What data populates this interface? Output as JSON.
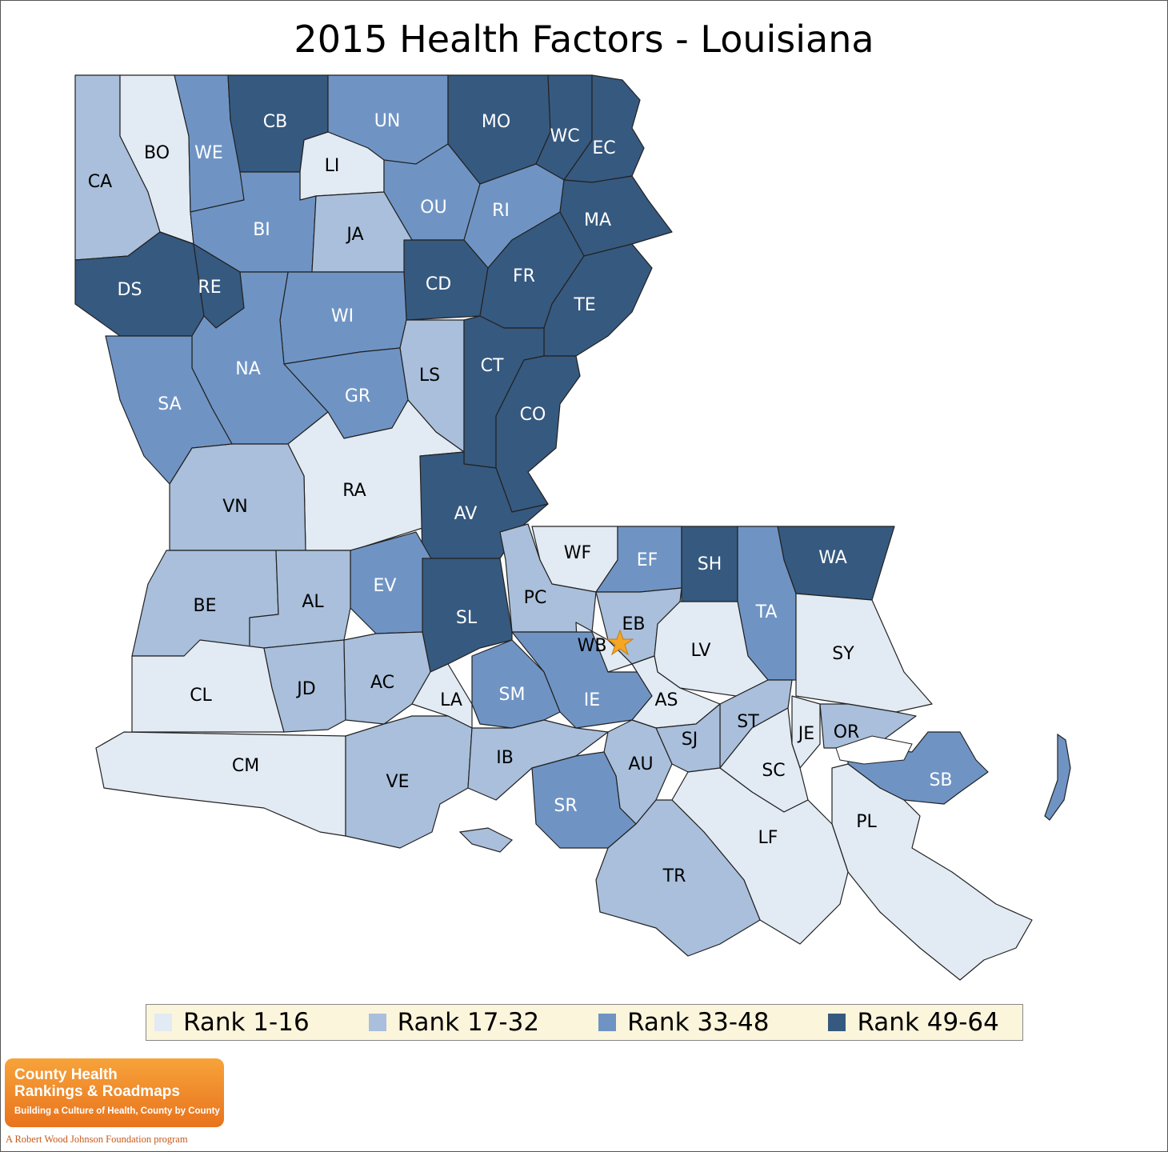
{
  "title": "2015 Health Factors - Louisiana",
  "legend": [
    {
      "label": "Rank 1-16",
      "color": "#e2eaf3"
    },
    {
      "label": "Rank 17-32",
      "color": "#a9bfdb"
    },
    {
      "label": "Rank 33-48",
      "color": "#6f94c4"
    },
    {
      "label": "Rank 49-64",
      "color": "#36597f"
    }
  ],
  "parishes": [
    {
      "code": "CA",
      "tier": 1
    },
    {
      "code": "BO",
      "tier": 0
    },
    {
      "code": "WE",
      "tier": 2
    },
    {
      "code": "CB",
      "tier": 3
    },
    {
      "code": "UN",
      "tier": 2
    },
    {
      "code": "MO",
      "tier": 3
    },
    {
      "code": "WC",
      "tier": 3
    },
    {
      "code": "EC",
      "tier": 3
    },
    {
      "code": "LI",
      "tier": 0
    },
    {
      "code": "OU",
      "tier": 2
    },
    {
      "code": "RI",
      "tier": 2
    },
    {
      "code": "MA",
      "tier": 3
    },
    {
      "code": "BI",
      "tier": 2
    },
    {
      "code": "JA",
      "tier": 1
    },
    {
      "code": "DS",
      "tier": 3
    },
    {
      "code": "RE",
      "tier": 3
    },
    {
      "code": "CD",
      "tier": 3
    },
    {
      "code": "FR",
      "tier": 3
    },
    {
      "code": "TE",
      "tier": 3
    },
    {
      "code": "WI",
      "tier": 2
    },
    {
      "code": "NA",
      "tier": 2
    },
    {
      "code": "LS",
      "tier": 1
    },
    {
      "code": "CT",
      "tier": 3
    },
    {
      "code": "GR",
      "tier": 2
    },
    {
      "code": "SA",
      "tier": 2
    },
    {
      "code": "CO",
      "tier": 3
    },
    {
      "code": "RA",
      "tier": 0
    },
    {
      "code": "VN",
      "tier": 1
    },
    {
      "code": "AV",
      "tier": 3
    },
    {
      "code": "WF",
      "tier": 0
    },
    {
      "code": "EF",
      "tier": 2
    },
    {
      "code": "SH",
      "tier": 3
    },
    {
      "code": "WA",
      "tier": 3
    },
    {
      "code": "EV",
      "tier": 2
    },
    {
      "code": "PC",
      "tier": 1
    },
    {
      "code": "BE",
      "tier": 1
    },
    {
      "code": "AL",
      "tier": 1
    },
    {
      "code": "SL",
      "tier": 3
    },
    {
      "code": "EB",
      "tier": 1
    },
    {
      "code": "TA",
      "tier": 2
    },
    {
      "code": "WB",
      "tier": 0
    },
    {
      "code": "LV",
      "tier": 0
    },
    {
      "code": "SY",
      "tier": 0
    },
    {
      "code": "CL",
      "tier": 0
    },
    {
      "code": "JD",
      "tier": 1
    },
    {
      "code": "AC",
      "tier": 1
    },
    {
      "code": "LA",
      "tier": 0
    },
    {
      "code": "SM",
      "tier": 2
    },
    {
      "code": "IE",
      "tier": 2
    },
    {
      "code": "AS",
      "tier": 0
    },
    {
      "code": "ST",
      "tier": 1
    },
    {
      "code": "JE",
      "tier": 0
    },
    {
      "code": "OR",
      "tier": 1
    },
    {
      "code": "SJ",
      "tier": 1
    },
    {
      "code": "CM",
      "tier": 0
    },
    {
      "code": "VE",
      "tier": 1
    },
    {
      "code": "IB",
      "tier": 1
    },
    {
      "code": "AU",
      "tier": 1
    },
    {
      "code": "SC",
      "tier": 0
    },
    {
      "code": "SB",
      "tier": 2
    },
    {
      "code": "SR",
      "tier": 2
    },
    {
      "code": "PL",
      "tier": 0
    },
    {
      "code": "LF",
      "tier": 0
    },
    {
      "code": "TR",
      "tier": 1
    }
  ],
  "capital_marker": "star-icon",
  "logo": {
    "line1": "County Health",
    "line2": "Rankings & Roadmaps",
    "tagline": "Building a Culture of Health, County by County",
    "footer": "A Robert Wood Johnson Foundation program"
  }
}
